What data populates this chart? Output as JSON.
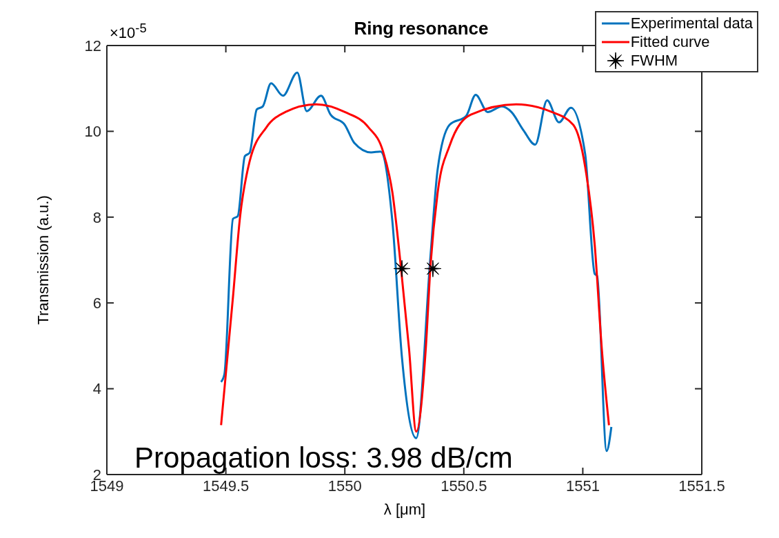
{
  "chart_data": {
    "type": "line",
    "title": "Ring resonance",
    "xlabel": "λ [μm]",
    "ylabel": "Transmission (a.u.)",
    "xlim": [
      1549,
      1551.5
    ],
    "xticks": [
      1549,
      1549.5,
      1550,
      1550.5,
      1551,
      1551.5
    ],
    "ylim": [
      2,
      12
    ],
    "yticks": [
      2,
      4,
      6,
      8,
      10,
      12
    ],
    "grid": false,
    "legend": "top right",
    "annotations": [
      "×10$^{-5}$",
      "Propagation loss: 3.98 dB/cm"
    ],
    "series": [
      {
        "name": "Experimental data",
        "color": "#0072bd",
        "marker": "none",
        "x": [
          1549.48,
          1549.494,
          1549.53,
          1549.55,
          1549.58,
          1549.6,
          1549.63,
          1549.655,
          1549.69,
          1549.74,
          1549.8,
          1549.84,
          1549.9,
          1549.94,
          1550,
          1550.04,
          1550.11,
          1550.15,
          1550.2,
          1550.24,
          1550.3,
          1550.36,
          1550.39,
          1550.44,
          1550.51,
          1550.55,
          1550.6,
          1550.66,
          1550.7,
          1550.75,
          1550.8,
          1550.85,
          1550.9,
          1550.95,
          1551.01,
          1551.05,
          1551.06,
          1551.1,
          1551.12
        ],
        "values": [
          4.16,
          4.34,
          7.96,
          8.02,
          9.42,
          9.5,
          10.51,
          10.58,
          11.12,
          10.83,
          11.37,
          10.47,
          10.83,
          10.39,
          10.15,
          9.73,
          9.51,
          9.53,
          7.89,
          4.73,
          2.85,
          7.1,
          9.11,
          10.15,
          10.36,
          10.85,
          10.45,
          10.58,
          10.45,
          10.03,
          9.69,
          10.72,
          10.21,
          10.55,
          9.47,
          6.68,
          6.63,
          2.55,
          3.11
        ]
      },
      {
        "name": "Fitted curve",
        "color": "#ff0000",
        "marker": "none",
        "x": [
          1549.48,
          1549.53,
          1549.56,
          1549.6,
          1549.67,
          1549.75,
          1549.88,
          1550,
          1550.1,
          1550.16,
          1550.2,
          1550.235,
          1550.27,
          1550.3,
          1550.34,
          1550.36,
          1550.39,
          1550.44,
          1550.53,
          1550.72,
          1550.87,
          1550.96,
          1551.01,
          1551.05,
          1551.08,
          1551.11
        ],
        "values": [
          3.15,
          6.14,
          8.02,
          9.3,
          10.09,
          10.45,
          10.63,
          10.45,
          10.09,
          9.54,
          8.57,
          6.87,
          4.92,
          3.0,
          4.92,
          6.87,
          8.57,
          9.66,
          10.39,
          10.63,
          10.45,
          10.15,
          9.17,
          7.36,
          4.92,
          3.15
        ]
      },
      {
        "name": "FWHM",
        "type": "scatter",
        "color": "#000000",
        "marker": "star",
        "x": [
          1550.24,
          1550.37
        ],
        "values": [
          6.8,
          6.8
        ]
      }
    ]
  }
}
